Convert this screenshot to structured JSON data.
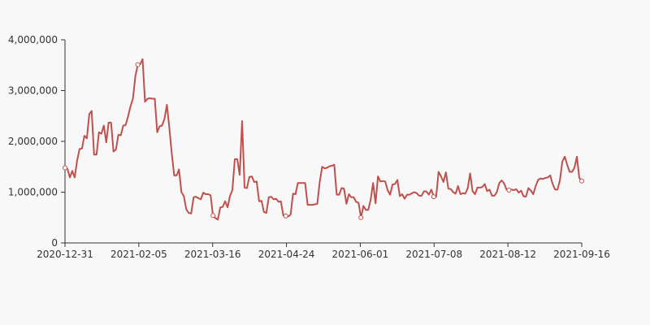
{
  "chart_data": {
    "type": "line",
    "title": "",
    "xlabel": "",
    "ylabel": "",
    "ylim": [
      0,
      4000000
    ],
    "grid": false,
    "color": "#c0504d",
    "y_ticks": [
      0,
      1000000,
      2000000,
      3000000,
      4000000
    ],
    "y_tick_labels": [
      "0",
      "1,000,000",
      "2,000,000",
      "3,000,000",
      "4,000,000"
    ],
    "x_tick_labels": [
      "2020-12-31",
      "2021-02-05",
      "2021-03-16",
      "2021-04-24",
      "2021-06-01",
      "2021-07-08",
      "2021-08-12",
      "2021-09-16"
    ],
    "series": [
      {
        "values": [
          1480000,
          1460000,
          1290000,
          1420000,
          1290000,
          1620000,
          1850000,
          1860000,
          2110000,
          2060000,
          2540000,
          2600000,
          1740000,
          1740000,
          2180000,
          2150000,
          2310000,
          1980000,
          2370000,
          2370000,
          1800000,
          1840000,
          2130000,
          2120000,
          2310000,
          2320000,
          2490000,
          2690000,
          2840000,
          3280000,
          3510000,
          3520000,
          3620000,
          2780000,
          2840000,
          2850000,
          2840000,
          2840000,
          2180000,
          2300000,
          2310000,
          2440000,
          2720000,
          2270000,
          1760000,
          1330000,
          1330000,
          1450000,
          1000000,
          920000,
          660000,
          590000,
          580000,
          900000,
          910000,
          880000,
          860000,
          990000,
          960000,
          960000,
          940000,
          540000,
          490000,
          460000,
          700000,
          710000,
          820000,
          700000,
          920000,
          1040000,
          1650000,
          1650000,
          1340000,
          2400000,
          1090000,
          1080000,
          1300000,
          1310000,
          1200000,
          1210000,
          820000,
          830000,
          610000,
          590000,
          900000,
          910000,
          860000,
          870000,
          810000,
          820000,
          540000,
          530000,
          520000,
          560000,
          970000,
          960000,
          1180000,
          1180000,
          1180000,
          1180000,
          750000,
          750000,
          750000,
          760000,
          770000,
          1200000,
          1500000,
          1470000,
          1480000,
          1510000,
          1520000,
          1540000,
          950000,
          950000,
          1080000,
          1070000,
          770000,
          960000,
          900000,
          900000,
          810000,
          790000,
          500000,
          730000,
          650000,
          650000,
          850000,
          1180000,
          780000,
          1310000,
          1210000,
          1220000,
          1210000,
          1040000,
          950000,
          1150000,
          1160000,
          1240000,
          920000,
          960000,
          870000,
          950000,
          950000,
          980000,
          1000000,
          980000,
          930000,
          930000,
          1020000,
          1010000,
          950000,
          1050000,
          910000,
          910000,
          1400000,
          1310000,
          1200000,
          1390000,
          1070000,
          1060000,
          1000000,
          970000,
          1120000,
          960000,
          980000,
          970000,
          1080000,
          1370000,
          1020000,
          960000,
          1090000,
          1090000,
          1100000,
          1160000,
          1020000,
          1050000,
          930000,
          930000,
          1000000,
          1180000,
          1230000,
          1170000,
          1050000,
          1040000,
          1050000,
          1040000,
          1060000,
          990000,
          1030000,
          920000,
          910000,
          1080000,
          1030000,
          960000,
          1120000,
          1240000,
          1270000,
          1260000,
          1280000,
          1290000,
          1330000,
          1160000,
          1050000,
          1050000,
          1230000,
          1600000,
          1700000,
          1540000,
          1400000,
          1400000,
          1480000,
          1700000,
          1280000,
          1220000
        ]
      }
    ]
  }
}
